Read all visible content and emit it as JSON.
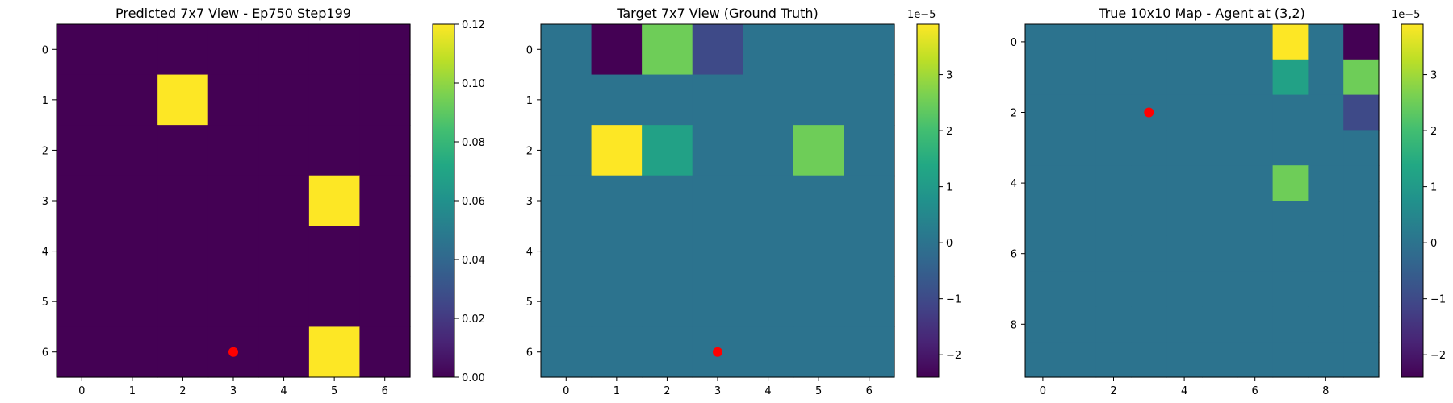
{
  "chart_data": [
    {
      "type": "heatmap",
      "title": "Predicted 7x7 View - Ep750 Step199",
      "rows": 7,
      "cols": 7,
      "xticks": [
        0,
        1,
        2,
        3,
        4,
        5,
        6
      ],
      "yticks": [
        0,
        1,
        2,
        3,
        4,
        5,
        6
      ],
      "values": [
        [
          0,
          0,
          0,
          0,
          0,
          0,
          0
        ],
        [
          0,
          0,
          0.12,
          0,
          0,
          0,
          0
        ],
        [
          0,
          0,
          0,
          0,
          0,
          0,
          0
        ],
        [
          0,
          0,
          0,
          0,
          0,
          0.12,
          0
        ],
        [
          0,
          0,
          0,
          0,
          0,
          0,
          0
        ],
        [
          0,
          0,
          0,
          0,
          0,
          0,
          0
        ],
        [
          0,
          0,
          0,
          0,
          0,
          0.12,
          0
        ]
      ],
      "colorbar": {
        "min": 0.0,
        "max": 0.12,
        "ticks": [
          "0.00",
          "0.02",
          "0.04",
          "0.06",
          "0.08",
          "0.10",
          "0.12"
        ],
        "multiplier": ""
      },
      "colormap": "viridis",
      "agent_marker": {
        "x": 3,
        "y": 6,
        "color": "#ff0000"
      }
    },
    {
      "type": "heatmap",
      "title": "Target 7x7 View (Ground Truth)",
      "rows": 7,
      "cols": 7,
      "xticks": [
        0,
        1,
        2,
        3,
        4,
        5,
        6
      ],
      "yticks": [
        0,
        1,
        2,
        3,
        4,
        5,
        6
      ],
      "values": [
        [
          0,
          -2.4,
          2.5,
          -1.0,
          0,
          0,
          0
        ],
        [
          0,
          0,
          0,
          0,
          0,
          0,
          0
        ],
        [
          0,
          3.9,
          1.2,
          0,
          0,
          2.5,
          0
        ],
        [
          0,
          0,
          0,
          0,
          0,
          0,
          0
        ],
        [
          0,
          0,
          0,
          0,
          0,
          0,
          0
        ],
        [
          0,
          0,
          0,
          0,
          0,
          0,
          0
        ],
        [
          0,
          0,
          0,
          0,
          0,
          0,
          0
        ]
      ],
      "colorbar": {
        "min": -2.4,
        "max": 3.9,
        "ticks": [
          "3",
          "2",
          "1",
          "0",
          "−1",
          "−2"
        ],
        "tick_values": [
          3,
          2,
          1,
          0,
          -1,
          -2
        ],
        "multiplier": "1e−5"
      },
      "colormap": "viridis",
      "agent_marker": {
        "x": 3,
        "y": 6,
        "color": "#ff0000"
      }
    },
    {
      "type": "heatmap",
      "title": "True 10x10 Map - Agent at (3,2)",
      "rows": 10,
      "cols": 10,
      "xticks": [
        0,
        2,
        4,
        6,
        8
      ],
      "yticks": [
        0,
        2,
        4,
        6,
        8
      ],
      "values": [
        [
          0,
          0,
          0,
          0,
          0,
          0,
          0,
          3.9,
          0,
          -2.4
        ],
        [
          0,
          0,
          0,
          0,
          0,
          0,
          0,
          1.2,
          0,
          2.5
        ],
        [
          0,
          0,
          0,
          0,
          0,
          0,
          0,
          0,
          0,
          -1.0
        ],
        [
          0,
          0,
          0,
          0,
          0,
          0,
          0,
          0,
          0,
          0
        ],
        [
          0,
          0,
          0,
          0,
          0,
          0,
          0,
          2.5,
          0,
          0
        ],
        [
          0,
          0,
          0,
          0,
          0,
          0,
          0,
          0,
          0,
          0
        ],
        [
          0,
          0,
          0,
          0,
          0,
          0,
          0,
          0,
          0,
          0
        ],
        [
          0,
          0,
          0,
          0,
          0,
          0,
          0,
          0,
          0,
          0
        ],
        [
          0,
          0,
          0,
          0,
          0,
          0,
          0,
          0,
          0,
          0
        ],
        [
          0,
          0,
          0,
          0,
          0,
          0,
          0,
          0,
          0,
          0
        ]
      ],
      "colorbar": {
        "min": -2.4,
        "max": 3.9,
        "ticks": [
          "3",
          "2",
          "1",
          "0",
          "−1",
          "−2"
        ],
        "tick_values": [
          3,
          2,
          1,
          0,
          -1,
          -2
        ],
        "multiplier": "1e−5"
      },
      "colormap": "viridis",
      "agent_marker": {
        "x": 3,
        "y": 2,
        "color": "#ff0000"
      }
    }
  ]
}
